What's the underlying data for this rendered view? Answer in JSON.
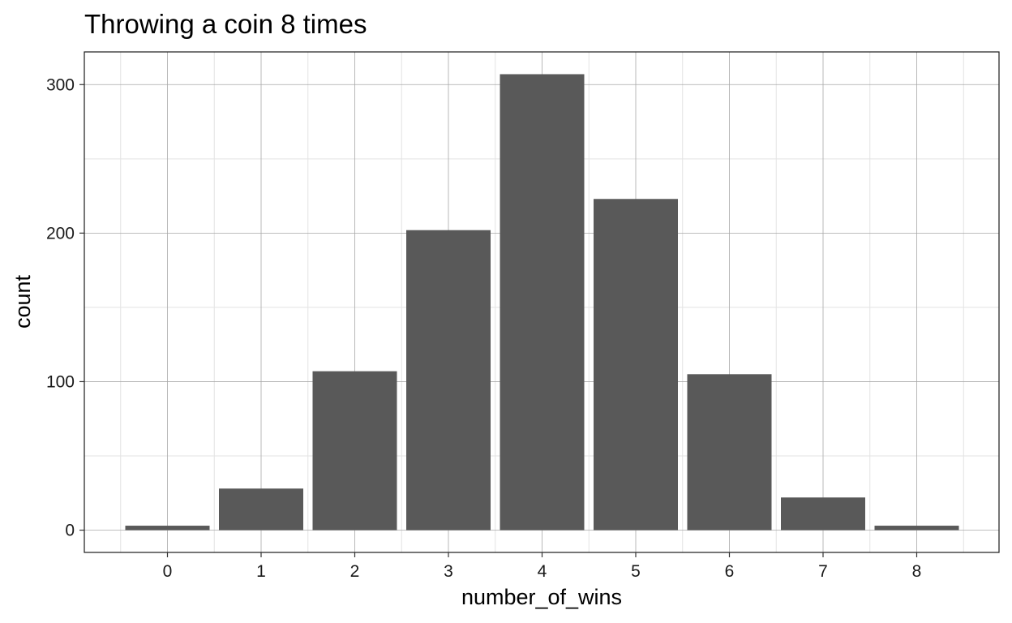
{
  "chart_data": {
    "type": "bar",
    "title": "Throwing a coin 8 times",
    "xlabel": "number_of_wins",
    "ylabel": "count",
    "categories": [
      "0",
      "1",
      "2",
      "3",
      "4",
      "5",
      "6",
      "7",
      "8"
    ],
    "values": [
      3,
      28,
      107,
      202,
      307,
      223,
      105,
      22,
      3
    ],
    "yticks": [
      "0",
      "100",
      "200",
      "300"
    ],
    "ylim": [
      -15,
      322
    ],
    "grid": true,
    "legend": "none",
    "bar_color": "#595959",
    "grid_major_color": "#a8a8a8",
    "grid_minor_color": "#e3e3e3",
    "panel_border_color": "#1a1a1a"
  }
}
